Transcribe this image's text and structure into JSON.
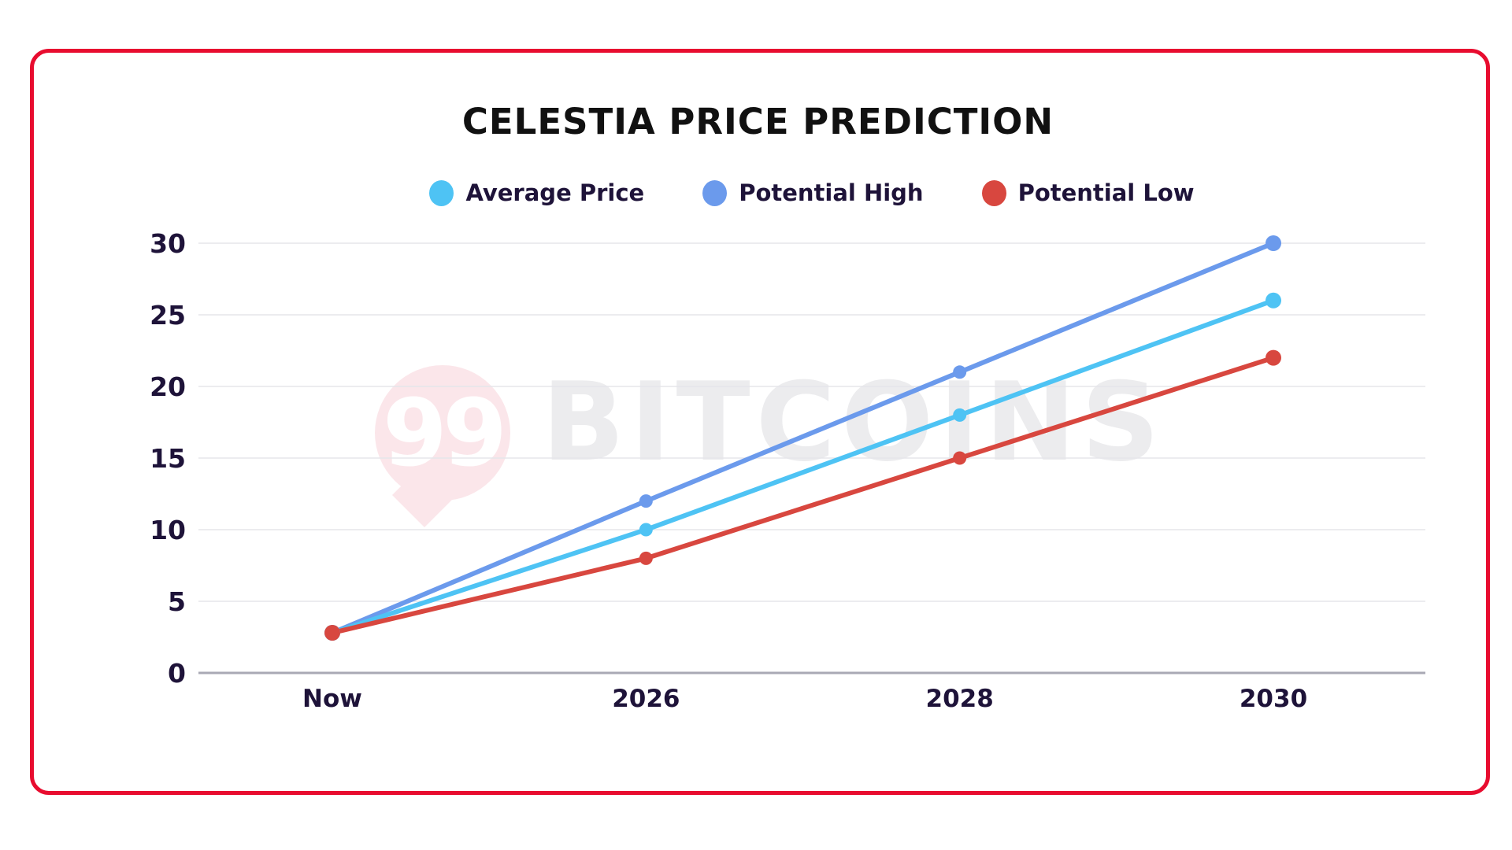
{
  "title": "CELESTIA PRICE PREDICTION",
  "watermark": {
    "logo_text": "99",
    "brand_text": "BITCOINS"
  },
  "colors": {
    "frame_border": "#E80C2F",
    "title_text": "#111111",
    "axis_text": "#1E1339",
    "gridline": "#E5E5EA",
    "baseline": "#A9A9B4",
    "watermark_pink": "#FBE6EA",
    "watermark_gray": "#ECECEE",
    "average_price": "#4EC3F4",
    "potential_high": "#6B9AEC",
    "potential_low": "#D8473F"
  },
  "chart_data": {
    "type": "line",
    "categories": [
      "Now",
      "2026",
      "2028",
      "2030"
    ],
    "series": [
      {
        "name": "Average Price",
        "color": "#4EC3F4",
        "values": [
          2.8,
          10,
          18,
          26
        ]
      },
      {
        "name": "Potential High",
        "color": "#6B9AEC",
        "values": [
          2.8,
          12,
          21,
          30
        ]
      },
      {
        "name": "Potential Low",
        "color": "#D8473F",
        "values": [
          2.8,
          8,
          15,
          22
        ]
      }
    ],
    "title": "CELESTIA PRICE PREDICTION",
    "xlabel": "",
    "ylabel": "",
    "ylim": [
      0,
      30
    ],
    "yticks": [
      0,
      5,
      10,
      15,
      20,
      25,
      30
    ],
    "grid": "horizontal",
    "legend_position": "top",
    "draw_order": [
      1,
      0,
      2
    ]
  }
}
